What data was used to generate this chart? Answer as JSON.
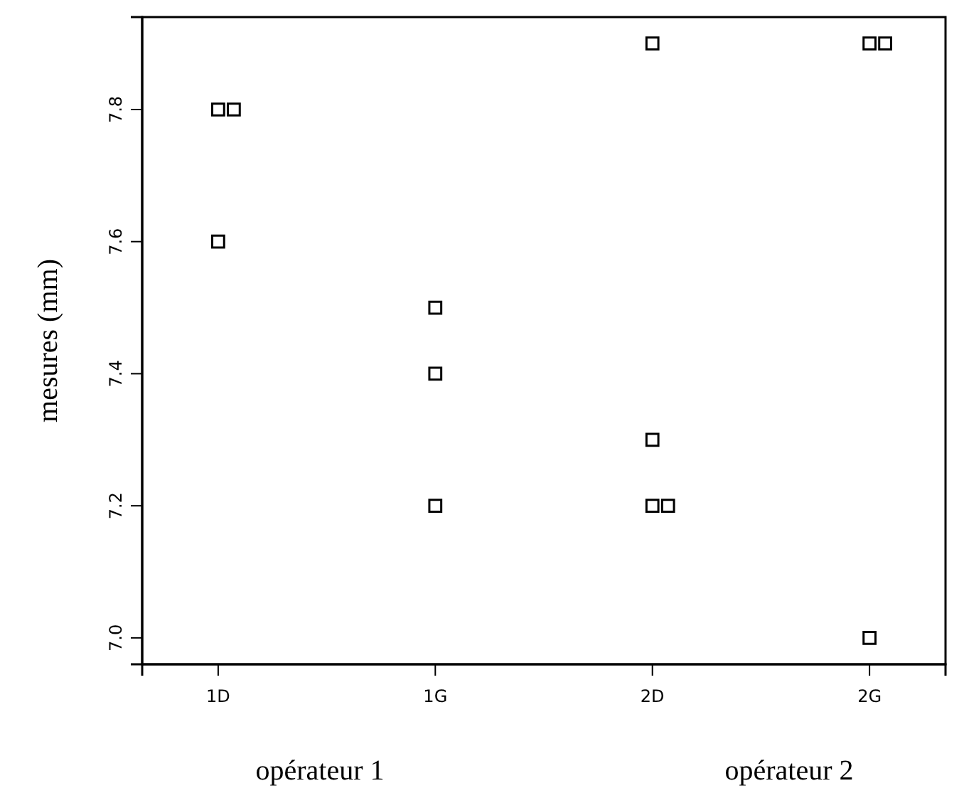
{
  "chart_data": {
    "type": "scatter",
    "ylabel": "mesures (mm)",
    "categories": [
      "1D",
      "1G",
      "2D",
      "2G"
    ],
    "series": [
      {
        "x": [
          "1D",
          "1D",
          "1D",
          "1G",
          "1G",
          "1G",
          "2D",
          "2D",
          "2D",
          "2D",
          "2G",
          "2G",
          "2G"
        ],
        "values": [
          7.6,
          7.8,
          7.8,
          7.2,
          7.4,
          7.5,
          7.2,
          7.2,
          7.3,
          7.9,
          7.0,
          7.9,
          7.9
        ],
        "color": "#000000"
      }
    ],
    "marker": "square",
    "ylim": [
      6.96,
      7.94
    ],
    "yticks": [
      {
        "value": 7.0,
        "label": "7.0"
      },
      {
        "value": 7.2,
        "label": "7.2"
      },
      {
        "value": 7.4,
        "label": "7.4"
      },
      {
        "value": 7.6,
        "label": "7.6"
      },
      {
        "value": 7.8,
        "label": "7.8"
      }
    ],
    "annotations": [
      "opérateur 1",
      "opérateur 2"
    ]
  }
}
